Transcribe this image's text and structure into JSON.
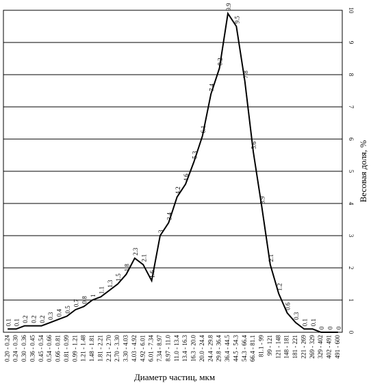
{
  "chart_data": {
    "type": "line",
    "x_label": "Диаметр частиц, мкм",
    "y_label": "Весовая доля, %",
    "categories": [
      "0.20 - 0.24",
      "0.24 - 0.30",
      "0.30 - 0.36",
      "0.36 - 0.45",
      "0.45 - 0.54",
      "0.54 - 0.66",
      "0.66 - 0.81",
      "0.81 - 0.99",
      "0.99 - 1.21",
      "1.21 - 1.48",
      "1.48 - 1.81",
      "1.81 - 2.21",
      "2.21 - 2.70",
      "2.70 - 3.30",
      "3.30 - 4.03",
      "4.03 - 4.92",
      "4.92 - 6.01",
      "6.01 - 7.34",
      "7.34 - 8.97",
      "8.97 - 11.0",
      "11.0 - 13.4",
      "13.4 - 16.3",
      "16.3 - 20.0",
      "20.0 - 24.4",
      "24.4 - 29.8",
      "29.8 - 36.4",
      "36.4 - 44.5",
      "44.5 - 54.3",
      "54.3 - 66.4",
      "66.4 - 81.1",
      "81.1 - 99",
      "99 - 121",
      "121 - 148",
      "148 - 181",
      "181 - 221",
      "221 - 269",
      "269 - 329",
      "329 - 402",
      "402 - 491",
      "491 - 600"
    ],
    "values": [
      0.1,
      0.1,
      0.2,
      0.2,
      0.2,
      0.3,
      0.4,
      0.5,
      0.7,
      0.8,
      1.0,
      1.1,
      1.3,
      1.5,
      1.8,
      2.3,
      2.1,
      1.6,
      3.0,
      3.4,
      4.2,
      4.6,
      5.3,
      6.1,
      7.4,
      8.2,
      9.9,
      9.5,
      7.8,
      5.6,
      3.9,
      2.1,
      1.2,
      0.6,
      0.3,
      0.1,
      0.1,
      0,
      0,
      0
    ],
    "color": "#000000",
    "ylim": [
      0,
      10
    ],
    "yticks": [
      0,
      1,
      2,
      3,
      4,
      5,
      6,
      7,
      8,
      9,
      10
    ],
    "grid": true
  }
}
